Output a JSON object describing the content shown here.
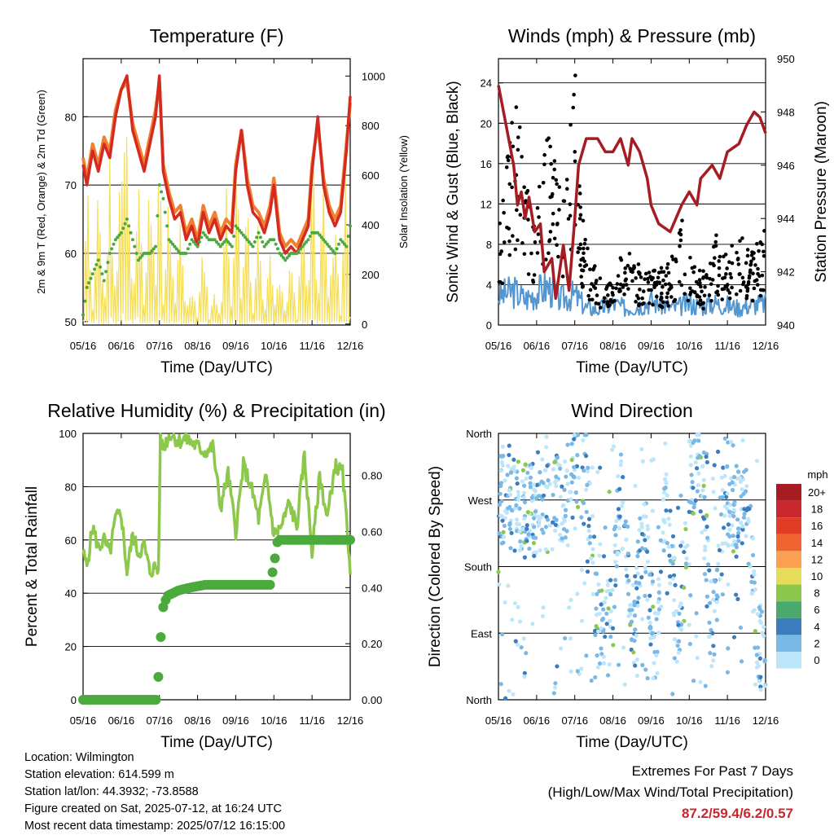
{
  "x_ticks": [
    "05/16",
    "06/16",
    "07/16",
    "08/16",
    "09/16",
    "10/16",
    "11/16",
    "12/16"
  ],
  "colors": {
    "temp2m": "#d42a20",
    "temp9m": "#f08030",
    "dew": "#4aaa3c",
    "solar": "#f5df5a",
    "wind": "#5297d2",
    "gust": "#000000",
    "pressure": "#a51d23",
    "rh": "#8cc84b",
    "precip": "#4aaa3c"
  },
  "colorbar": {
    "unit": "mph",
    "labels": [
      "20+",
      "18",
      "16",
      "14",
      "12",
      "10",
      "8",
      "6",
      "4",
      "2",
      "0"
    ],
    "colors": [
      "#a51d23",
      "#c8282d",
      "#e13c26",
      "#f06432",
      "#faa050",
      "#e6dc5a",
      "#8cc84b",
      "#4aaa6e",
      "#3c7dbe",
      "#7ab8e6",
      "#bee6fa"
    ]
  },
  "info": {
    "location": "Location: Wilmington",
    "elevation": "Station elevation: 614.599 m",
    "latlon": "Station lat/lon: 44.3932; -73.8588",
    "created": "Figure created on Sat, 2025-07-12, at 16:24 UTC",
    "latest": "Most recent data timestamp: 2025/07/12 16:15:00"
  },
  "extremes": {
    "line1": "Extremes For Past 7 Days",
    "line2": "(High/Low/Max Wind/Total Precipitation)",
    "values": "87.2/59.4/6.2/0.57"
  },
  "chart_data": [
    {
      "type": "line",
      "title": "Temperature (F)",
      "xlabel": "Time (Day/UTC)",
      "ylabel": "2m & 9m T (Red, Orange) & 2m Td (Green)",
      "y2label": "Solar Insolation (Yellow)",
      "ylim": [
        49.5,
        88.5
      ],
      "y2lim": [
        -4,
        1070
      ],
      "yticks": [
        "50",
        "60",
        "70",
        "80"
      ],
      "y2ticks": [
        "0",
        "200",
        "400",
        "600",
        "800",
        "1000"
      ],
      "x": [
        0,
        0.1,
        0.25,
        0.4,
        0.55,
        0.7,
        0.85,
        1,
        1.15,
        1.3,
        1.45,
        1.6,
        1.75,
        1.9,
        2,
        2.1,
        2.25,
        2.4,
        2.55,
        2.7,
        2.85,
        3,
        3.15,
        3.3,
        3.45,
        3.6,
        3.75,
        3.9,
        4,
        4.15,
        4.3,
        4.45,
        4.6,
        4.75,
        4.9,
        5,
        5.15,
        5.3,
        5.45,
        5.6,
        5.75,
        5.9,
        6,
        6.15,
        6.3,
        6.45,
        6.6,
        6.75,
        6.9,
        7
      ],
      "series": [
        {
          "name": "2m T",
          "values": [
            73,
            70,
            75,
            72,
            76,
            74,
            80,
            84,
            86,
            78,
            75,
            72,
            76,
            80,
            86,
            72,
            68,
            65,
            66,
            62,
            64,
            61,
            66,
            63,
            65,
            62,
            64,
            63,
            72,
            78,
            70,
            66,
            65,
            63,
            66,
            70,
            62,
            60,
            61,
            60,
            62,
            64,
            72,
            80,
            70,
            66,
            64,
            66,
            75,
            83
          ]
        },
        {
          "name": "9m T",
          "values": [
            74,
            71,
            76,
            73,
            77,
            75,
            81,
            84,
            85,
            79,
            76,
            73,
            77,
            81,
            85,
            73,
            69,
            66,
            67,
            63,
            65,
            62,
            67,
            64,
            66,
            63,
            65,
            64,
            73,
            78,
            71,
            67,
            66,
            64,
            67,
            71,
            63,
            61,
            62,
            61,
            63,
            65,
            73,
            79,
            71,
            67,
            65,
            67,
            76,
            82
          ]
        },
        {
          "name": "2m Td",
          "values": [
            51,
            55,
            57,
            59,
            56,
            60,
            62,
            63,
            65,
            62,
            59,
            60,
            60,
            61,
            70,
            68,
            62,
            61,
            60,
            60,
            62,
            61,
            63,
            62,
            62,
            61,
            62,
            61,
            64,
            63,
            62,
            61,
            63,
            61,
            62,
            62,
            60,
            59,
            60,
            60,
            61,
            62,
            63,
            63,
            62,
            61,
            60,
            62,
            61,
            64
          ]
        },
        {
          "name": "Solar",
          "values": [
            20,
            800,
            50,
            650,
            30,
            700,
            60,
            850,
            920,
            100,
            750,
            40,
            800,
            80,
            950,
            100,
            600,
            30,
            500,
            50,
            200,
            30,
            400,
            20,
            150,
            40,
            600,
            30,
            900,
            80,
            650,
            40,
            500,
            30,
            450,
            60,
            250,
            30,
            300,
            20,
            500,
            40,
            900,
            60,
            700,
            50,
            600,
            30,
            800,
            30
          ]
        }
      ]
    },
    {
      "type": "scatter",
      "title": "Winds (mph) & Pressure (mb)",
      "xlabel": "Time (Day/UTC)",
      "ylabel": "Sonic Wind & Gust (Blue, Black)",
      "y2label": "Station Pressure (Maroon)",
      "ylim": [
        0,
        26.4
      ],
      "y2lim": [
        940,
        950
      ],
      "yticks": [
        "0",
        "4",
        "8",
        "12",
        "16",
        "20",
        "24"
      ],
      "y2ticks": [
        "940",
        "942",
        "944",
        "946",
        "948",
        "950"
      ],
      "pressure": {
        "x": [
          0,
          0.2,
          0.4,
          0.5,
          0.6,
          0.7,
          0.8,
          0.95,
          1.1,
          1.2,
          1.4,
          1.5,
          1.7,
          1.85,
          2,
          2.1,
          2.3,
          2.6,
          2.8,
          3,
          3.2,
          3.4,
          3.5,
          3.7,
          3.9,
          4,
          4.2,
          4.5,
          4.8,
          5,
          5.2,
          5.3,
          5.6,
          5.8,
          6,
          6.3,
          6.5,
          6.7,
          6.85,
          7
        ],
        "values": [
          949,
          947.5,
          946,
          944.5,
          945,
          944,
          944.8,
          943.5,
          943.8,
          942,
          942.5,
          941,
          943,
          941.3,
          944,
          946,
          947,
          947,
          946.5,
          946.5,
          947,
          946,
          947,
          946.5,
          945.5,
          944.5,
          943.8,
          943.5,
          944.5,
          945,
          944.5,
          945.5,
          946,
          945.5,
          946.5,
          946.8,
          947.5,
          948,
          947.8,
          947.2
        ]
      },
      "wind_sample": {
        "x": [
          0.1,
          0.4,
          0.7,
          1,
          1.3,
          1.6,
          2,
          2.3,
          2.6,
          3,
          3.3,
          3.6,
          4,
          4.3,
          4.6,
          5,
          5.3,
          5.6,
          6,
          6.3,
          6.6,
          6.9
        ],
        "values": [
          3.5,
          4,
          3,
          3.8,
          4.5,
          3,
          3.5,
          2,
          1.8,
          2.5,
          2,
          2.2,
          2.8,
          2.4,
          2,
          2.5,
          2.2,
          2.6,
          2.3,
          2,
          2.4,
          2.5
        ]
      },
      "gust_sample": {
        "x": [
          0.05,
          0.2,
          0.35,
          0.5,
          0.65,
          0.8,
          0.95,
          1.1,
          1.25,
          1.4,
          1.55,
          1.7,
          1.85,
          2,
          2.15,
          2.4,
          2.7,
          3,
          3.3,
          3.6,
          3.9,
          4.2,
          4.5,
          4.8,
          5.1,
          5.4,
          5.7,
          6,
          6.3,
          6.6,
          6.9
        ],
        "values": [
          10,
          14,
          17,
          23,
          15,
          12,
          9,
          13,
          17,
          14,
          15,
          11,
          14,
          24.5,
          10,
          6,
          4,
          3.5,
          7,
          5,
          6,
          4.5,
          5.5,
          9,
          5,
          4.5,
          8,
          5.5,
          9,
          6,
          8
        ]
      }
    },
    {
      "type": "line",
      "title": "Relative Humidity (%) & Precipitation (in)",
      "xlabel": "Time (Day/UTC)",
      "ylabel": "Percent & Total Rainfall",
      "ylim": [
        0,
        100
      ],
      "y2lim": [
        0,
        0.95
      ],
      "yticks": [
        "0",
        "20",
        "40",
        "60",
        "80",
        "100"
      ],
      "y2ticks": [
        "0.00",
        "0.20",
        "0.40",
        "0.60",
        "0.80"
      ],
      "rh": {
        "x": [
          0,
          0.1,
          0.25,
          0.4,
          0.55,
          0.7,
          0.85,
          1,
          1.15,
          1.3,
          1.45,
          1.6,
          1.75,
          1.9,
          1.98,
          2.02,
          2.1,
          2.3,
          2.5,
          2.7,
          2.9,
          3,
          3.2,
          3.4,
          3.6,
          3.8,
          4,
          4.2,
          4.4,
          4.6,
          4.8,
          5,
          5.2,
          5.4,
          5.6,
          5.8,
          6,
          6.2,
          6.4,
          6.6,
          6.8,
          7
        ],
        "values": [
          55,
          50,
          65,
          57,
          60,
          55,
          68,
          70,
          48,
          62,
          55,
          58,
          48,
          50,
          48,
          97,
          95,
          100,
          97,
          98,
          96,
          95,
          93,
          95,
          72,
          85,
          63,
          88,
          80,
          68,
          84,
          62,
          65,
          74,
          65,
          92,
          55,
          84,
          68,
          88,
          85,
          50
        ]
      },
      "precip": {
        "x": [
          0,
          1.95,
          2,
          2.05,
          2.1,
          2.2,
          2.5,
          2.8,
          3.2,
          4,
          4.9,
          5,
          5.1,
          5.5,
          6,
          6.5,
          7
        ],
        "values": [
          0,
          0,
          0.18,
          0.24,
          0.33,
          0.37,
          0.39,
          0.4,
          0.41,
          0.41,
          0.41,
          0.48,
          0.57,
          0.57,
          0.57,
          0.57,
          0.57
        ]
      }
    },
    {
      "type": "scatter",
      "title": "Wind Direction",
      "xlabel": "Time (Day/UTC)",
      "ylabel": "Direction (Colored By Speed)",
      "ylim": [
        0,
        360
      ],
      "yticks": [
        "North",
        "East",
        "South",
        "West",
        "North"
      ],
      "sample": {
        "x": [
          0.2,
          0.4,
          0.6,
          0.8,
          1,
          1.2,
          1.4,
          1.6,
          1.8,
          2,
          2.3,
          2.6,
          2.9,
          3.2,
          3.5,
          3.8,
          4.1,
          4.4,
          4.7,
          5,
          5.3,
          5.6,
          5.9,
          6.2,
          6.5,
          6.8
        ],
        "values": [
          270,
          290,
          250,
          265,
          230,
          280,
          300,
          260,
          280,
          310,
          320,
          100,
          90,
          280,
          80,
          250,
          60,
          270,
          90,
          290,
          310,
          80,
          270,
          240,
          280,
          70
        ]
      }
    }
  ]
}
